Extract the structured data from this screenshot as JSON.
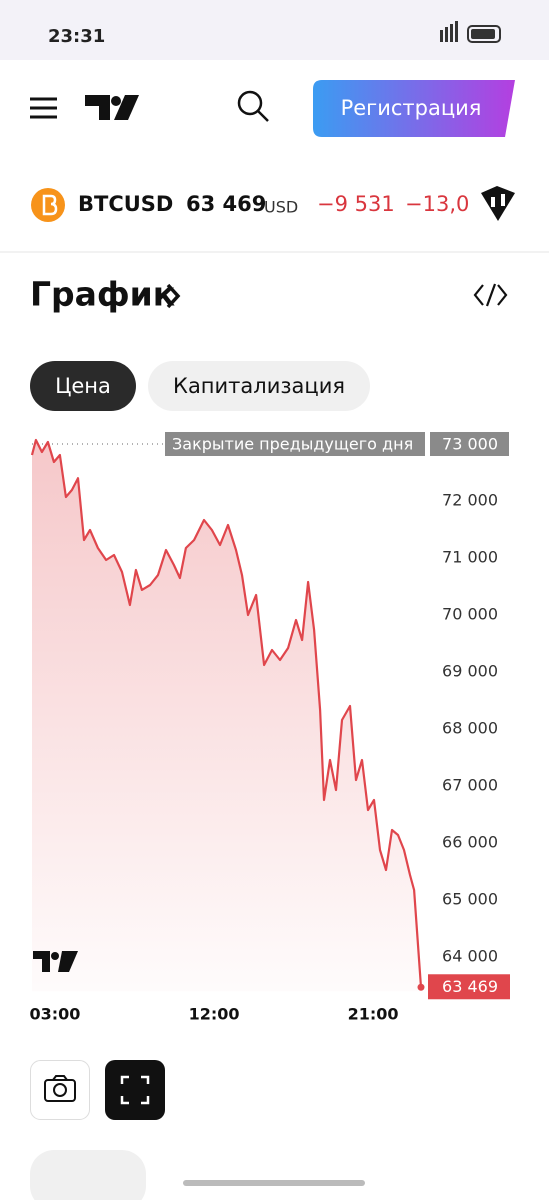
{
  "status_bar": {
    "time": "23:31"
  },
  "header": {
    "button": "Регистрация"
  },
  "ticker": {
    "symbol": "BTCUSD",
    "price": "63 469",
    "currency": "USD",
    "change": "−9 531",
    "change_percent": "−13,0"
  },
  "section": {
    "title": "График"
  },
  "tabs": [
    "Цена",
    "Капитализация"
  ],
  "chart_data": {
    "type": "area",
    "x": [
      1.7,
      1.92,
      2.26,
      2.6,
      2.94,
      3.28,
      3.62,
      3.96,
      4.3,
      4.64,
      4.98,
      5.43,
      5.89,
      6.34,
      6.79,
      7.24,
      7.58,
      7.92,
      8.38,
      8.83,
      9.28,
      9.73,
      10.07,
      10.41,
      10.87,
      11.43,
      11.88,
      12.34,
      12.79,
      13.24,
      13.58,
      13.92,
      14.38,
      14.83,
      15.28,
      15.73,
      16.19,
      16.64,
      16.98,
      17.32,
      17.66,
      18.0,
      18.22,
      18.56,
      18.9,
      19.24,
      19.69,
      20.03,
      20.37,
      20.71,
      21.05,
      21.39,
      21.73,
      22.07,
      22.41,
      22.75,
      23.09,
      23.32,
      23.54,
      23.71
    ],
    "values": [
      72807,
      73070,
      72860,
      73035,
      72684,
      72807,
      72070,
      72193,
      72400,
      71316,
      71491,
      71175,
      70965,
      71053,
      70754,
      70175,
      70790,
      70440,
      70526,
      70700,
      71140,
      70877,
      70649,
      71175,
      71316,
      71667,
      71491,
      71228,
      71579,
      71140,
      70700,
      70000,
      70351,
      69123,
      69386,
      69211,
      69421,
      69912,
      69561,
      70579,
      69737,
      68333,
      66754,
      67456,
      66930,
      68158,
      68404,
      67105,
      67456,
      66579,
      66754,
      65877,
      65526,
      66228,
      66140,
      65877,
      65439,
      65175,
      64211,
      63469
    ],
    "last_value_label": "63 469",
    "color": "#e0464c",
    "xlim": [
      1.7,
      23.71
    ],
    "ylim": [
      63400,
      73200
    ],
    "xticks": [
      {
        "value": 3,
        "label": "03:00"
      },
      {
        "value": 12,
        "label": "12:00"
      },
      {
        "value": 21,
        "label": "21:00"
      }
    ],
    "yticks": [
      {
        "value": 64000,
        "label": "64 000"
      },
      {
        "value": 65000,
        "label": "65 000"
      },
      {
        "value": 66000,
        "label": "66 000"
      },
      {
        "value": 67000,
        "label": "67 000"
      },
      {
        "value": 68000,
        "label": "68 000"
      },
      {
        "value": 69000,
        "label": "69 000"
      },
      {
        "value": 70000,
        "label": "70 000"
      },
      {
        "value": 71000,
        "label": "71 000"
      },
      {
        "value": 72000,
        "label": "72 000"
      }
    ],
    "reference_line": {
      "label": "Закрытие предыдущего дня",
      "value": 73000,
      "value_label": "73 000"
    }
  }
}
